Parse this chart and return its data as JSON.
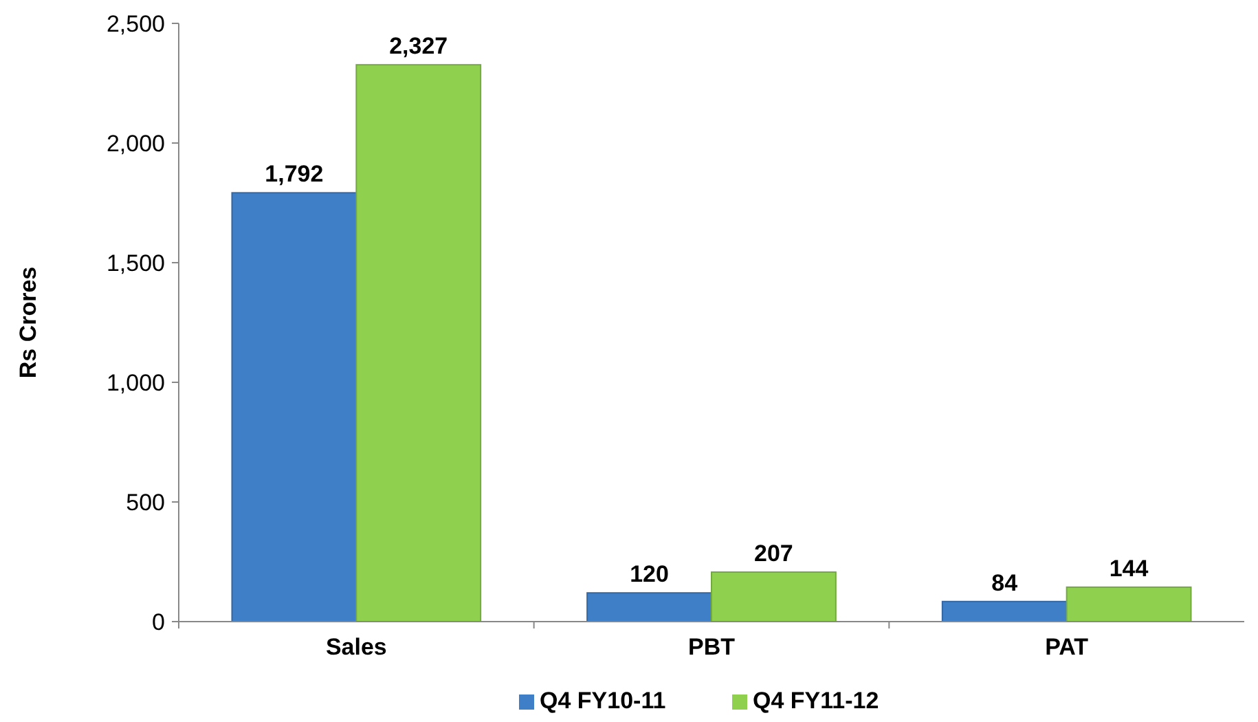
{
  "chart_data": {
    "type": "bar",
    "ylabel": "Rs Crores",
    "categories": [
      "Sales",
      "PBT",
      "PAT"
    ],
    "series": [
      {
        "name": "Q4 FY10-11",
        "color": "#3f7fc8",
        "values": [
          1792,
          120,
          84
        ]
      },
      {
        "name": "Q4 FY11-12",
        "color": "#8fd14f",
        "values": [
          2327,
          207,
          144
        ]
      }
    ],
    "ylim": [
      0,
      2500
    ],
    "yticks": [
      {
        "value": 0,
        "label": "0"
      },
      {
        "value": 500,
        "label": "500"
      },
      {
        "value": 1000,
        "label": "1,000"
      },
      {
        "value": 1500,
        "label": "1,500"
      },
      {
        "value": 2000,
        "label": "2,000"
      },
      {
        "value": 2500,
        "label": "2,500"
      }
    ],
    "value_labels": [
      [
        "1,792",
        "120",
        "84"
      ],
      [
        "2,327",
        "207",
        "144"
      ]
    ],
    "legend": "bottom",
    "grid": false
  }
}
